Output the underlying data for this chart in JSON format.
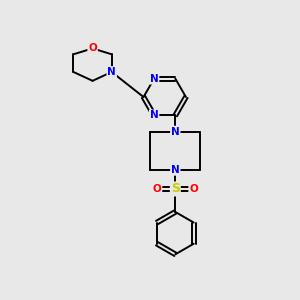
{
  "background_color": "#e8e8e8",
  "bond_color": "#000000",
  "N_color": "#0000ff",
  "O_color": "#ff0000",
  "S_color": "#cccc00",
  "figsize": [
    3.0,
    3.0
  ],
  "dpi": 100,
  "lw": 1.4,
  "fs": 7.5,
  "xlim": [
    0,
    10
  ],
  "ylim": [
    0,
    10
  ]
}
